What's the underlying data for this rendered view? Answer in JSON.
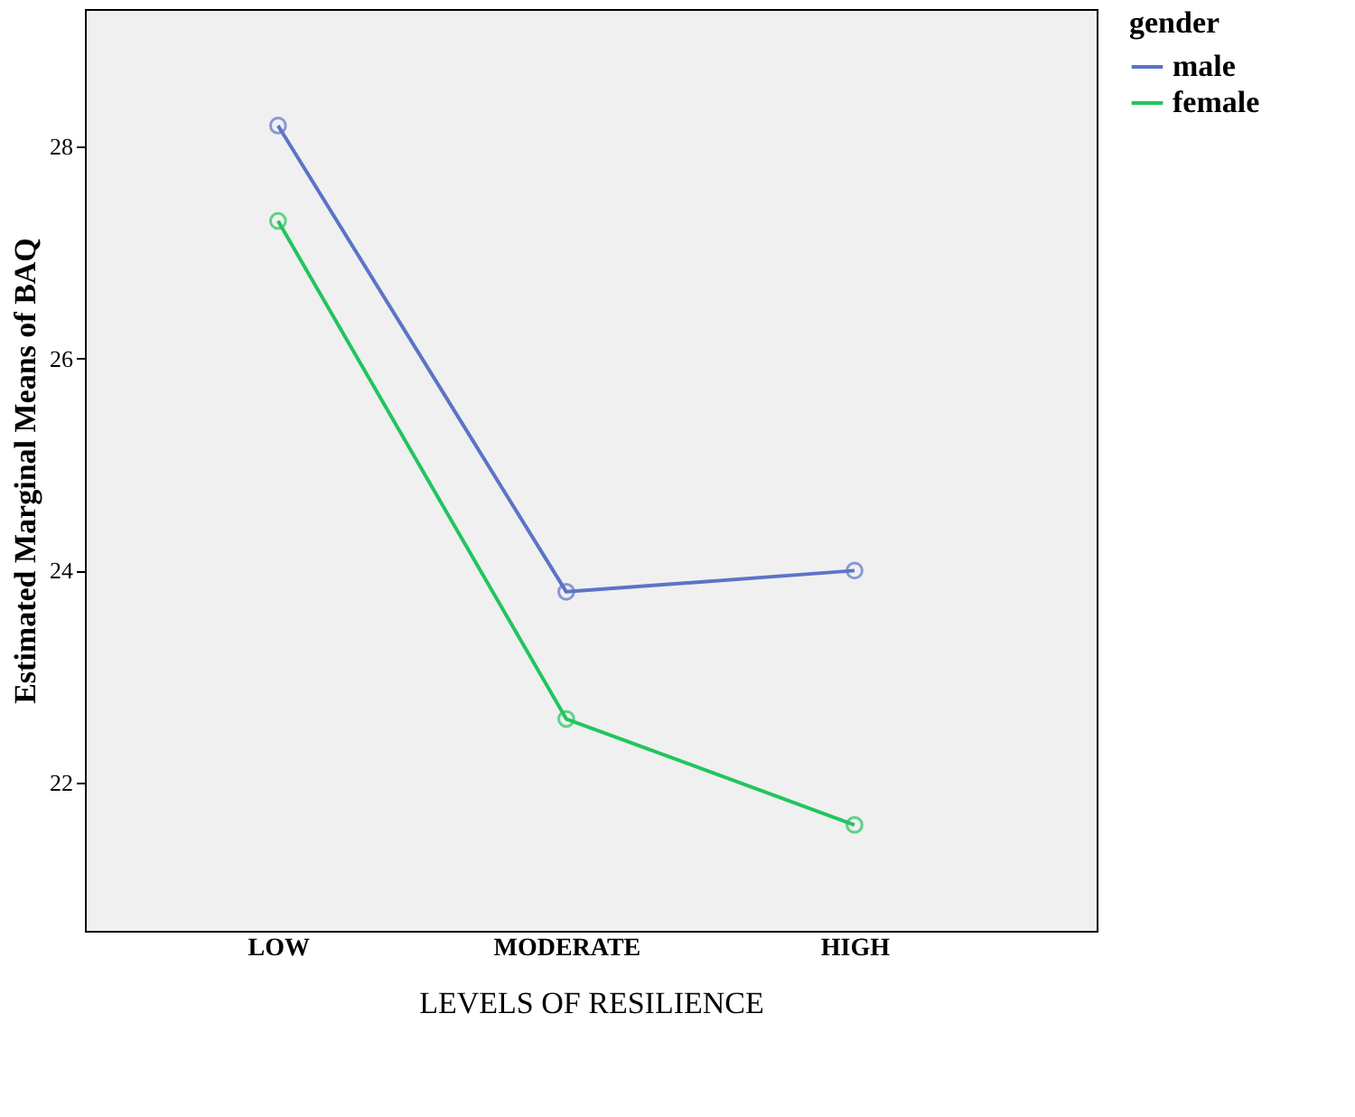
{
  "chart_data": {
    "type": "line",
    "xlabel": "LEVELS OF RESILIENCE",
    "ylabel": "Estimated Marginal Means of BAQ",
    "legend_title": "gender",
    "categories": [
      "LOW",
      "MODERATE",
      "HIGH"
    ],
    "series": [
      {
        "name": "male",
        "color": "#5b74c9",
        "values": [
          28.2,
          23.8,
          24.0
        ]
      },
      {
        "name": "female",
        "color": "#22c55e",
        "values": [
          27.3,
          22.6,
          21.6
        ]
      }
    ],
    "ylim": [
      20.6,
      29.3
    ],
    "yticks": [
      22,
      24,
      26,
      28
    ],
    "grid": false,
    "legend": "top right",
    "marker": "circle",
    "line_style": "solid"
  }
}
